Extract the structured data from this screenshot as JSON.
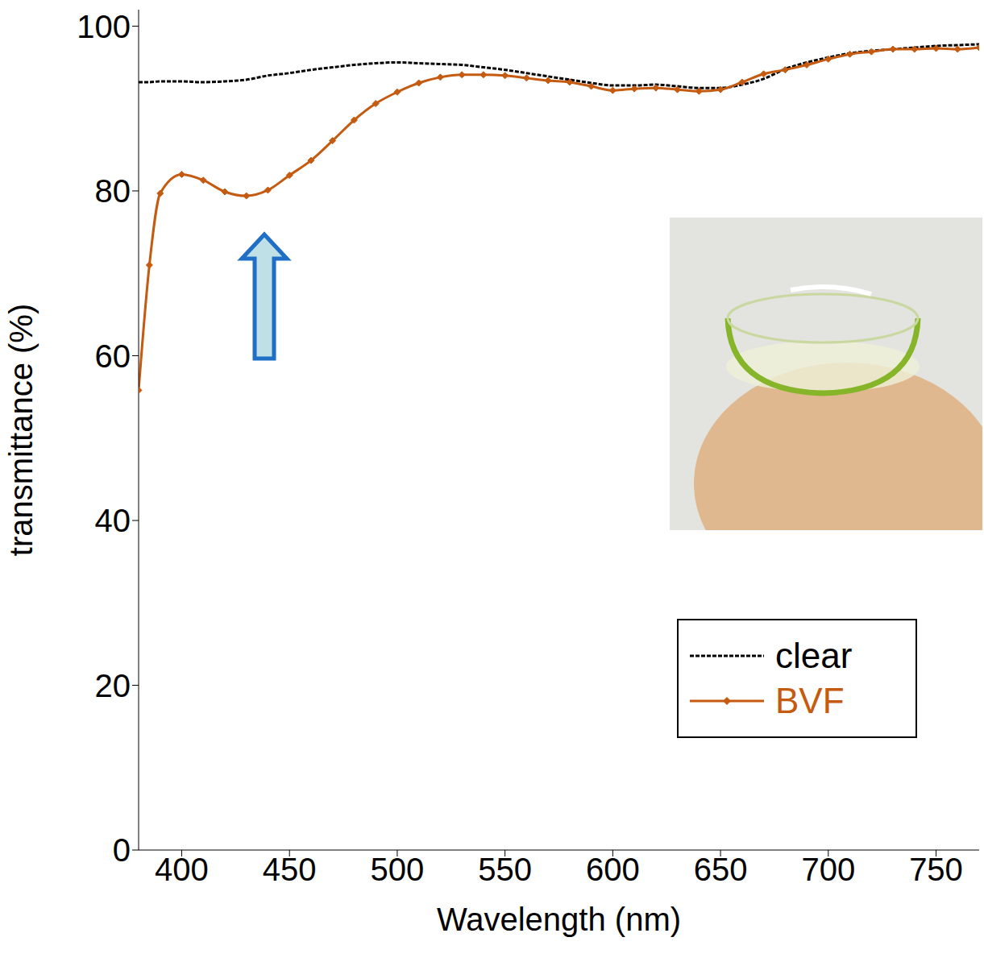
{
  "chart_data": {
    "type": "line",
    "x_label": "Wavelength (nm)",
    "y_label": "transmittance (%)",
    "x": [
      380,
      385,
      390,
      400,
      410,
      420,
      430,
      440,
      450,
      460,
      470,
      480,
      490,
      500,
      510,
      520,
      530,
      540,
      550,
      560,
      570,
      580,
      590,
      600,
      610,
      620,
      630,
      640,
      650,
      660,
      670,
      680,
      690,
      700,
      710,
      720,
      730,
      740,
      750,
      760,
      770
    ],
    "series": [
      {
        "name": "clear",
        "color": "#000000",
        "line_style": "dashed",
        "marker": "none",
        "values": [
          93.2,
          93.2,
          93.3,
          93.3,
          93.2,
          93.3,
          93.5,
          94.0,
          94.3,
          94.7,
          95.0,
          95.3,
          95.5,
          95.6,
          95.5,
          95.4,
          95.3,
          95.0,
          94.7,
          94.3,
          93.9,
          93.5,
          93.1,
          92.8,
          92.8,
          92.9,
          92.7,
          92.5,
          92.5,
          92.9,
          93.6,
          94.8,
          95.6,
          96.2,
          96.7,
          97.0,
          97.2,
          97.4,
          97.6,
          97.7,
          97.8
        ]
      },
      {
        "name": "BVF",
        "color": "#c55a11",
        "line_style": "solid",
        "marker": "diamond",
        "values": [
          55.8,
          71.0,
          79.7,
          82.0,
          81.3,
          79.9,
          79.4,
          80.1,
          81.9,
          83.7,
          86.1,
          88.6,
          90.6,
          92.0,
          93.1,
          93.8,
          94.1,
          94.1,
          94.0,
          93.7,
          93.4,
          93.2,
          92.7,
          92.2,
          92.4,
          92.5,
          92.3,
          92.1,
          92.3,
          93.2,
          94.2,
          94.7,
          95.3,
          96.0,
          96.6,
          96.9,
          97.2,
          97.2,
          97.3,
          97.2,
          97.4
        ]
      }
    ],
    "xlim": [
      380,
      770
    ],
    "xticks": [
      400,
      450,
      500,
      550,
      600,
      650,
      700,
      750
    ],
    "ylim": [
      0,
      102
    ],
    "yticks": [
      0,
      20,
      40,
      60,
      80,
      100
    ],
    "grid": false,
    "legend": "lower right"
  }
}
